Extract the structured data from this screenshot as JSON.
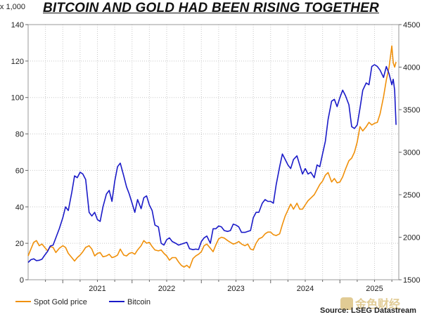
{
  "chart_data": {
    "type": "line",
    "title": "BITCOIN AND GOLD HAD BEEN RISING TOGETHER",
    "left_axis": {
      "unit_label": "x 1,000",
      "range": [
        0,
        140
      ],
      "ticks": [
        "0",
        "20",
        "40",
        "60",
        "80",
        "100",
        "120",
        "140"
      ]
    },
    "right_axis": {
      "range": [
        1500,
        4500
      ],
      "ticks": [
        "1500",
        "2000",
        "2500",
        "3000",
        "3500",
        "4000",
        "4500"
      ]
    },
    "x_axis": {
      "range": [
        2020.5,
        2025.85
      ],
      "ticks": [
        "2021",
        "2022",
        "2023",
        "2024",
        "2025"
      ]
    },
    "grid": true,
    "legend_position": "bottom-left",
    "series": [
      {
        "name": "Spot Gold price",
        "axis": "right",
        "color": "#f0900a",
        "points": [
          [
            2020.5,
            1780
          ],
          [
            2020.54,
            1860
          ],
          [
            2020.58,
            1940
          ],
          [
            2020.62,
            1960
          ],
          [
            2020.66,
            1900
          ],
          [
            2020.7,
            1920
          ],
          [
            2020.74,
            1880
          ],
          [
            2020.78,
            1840
          ],
          [
            2020.82,
            1890
          ],
          [
            2020.86,
            1880
          ],
          [
            2020.9,
            1820
          ],
          [
            2020.95,
            1870
          ],
          [
            2021.0,
            1900
          ],
          [
            2021.04,
            1880
          ],
          [
            2021.08,
            1810
          ],
          [
            2021.13,
            1760
          ],
          [
            2021.17,
            1720
          ],
          [
            2021.21,
            1760
          ],
          [
            2021.25,
            1790
          ],
          [
            2021.29,
            1830
          ],
          [
            2021.33,
            1880
          ],
          [
            2021.38,
            1900
          ],
          [
            2021.42,
            1860
          ],
          [
            2021.46,
            1780
          ],
          [
            2021.5,
            1810
          ],
          [
            2021.54,
            1820
          ],
          [
            2021.58,
            1770
          ],
          [
            2021.63,
            1780
          ],
          [
            2021.67,
            1800
          ],
          [
            2021.71,
            1760
          ],
          [
            2021.75,
            1770
          ],
          [
            2021.79,
            1790
          ],
          [
            2021.83,
            1860
          ],
          [
            2021.88,
            1790
          ],
          [
            2021.92,
            1780
          ],
          [
            2021.96,
            1810
          ],
          [
            2022.0,
            1820
          ],
          [
            2022.04,
            1800
          ],
          [
            2022.08,
            1850
          ],
          [
            2022.13,
            1900
          ],
          [
            2022.17,
            1960
          ],
          [
            2022.21,
            1930
          ],
          [
            2022.25,
            1940
          ],
          [
            2022.29,
            1890
          ],
          [
            2022.33,
            1850
          ],
          [
            2022.38,
            1840
          ],
          [
            2022.42,
            1850
          ],
          [
            2022.46,
            1810
          ],
          [
            2022.5,
            1780
          ],
          [
            2022.54,
            1730
          ],
          [
            2022.58,
            1760
          ],
          [
            2022.63,
            1760
          ],
          [
            2022.67,
            1710
          ],
          [
            2022.71,
            1670
          ],
          [
            2022.75,
            1650
          ],
          [
            2022.79,
            1670
          ],
          [
            2022.83,
            1640
          ],
          [
            2022.88,
            1750
          ],
          [
            2022.92,
            1780
          ],
          [
            2022.96,
            1800
          ],
          [
            2023.0,
            1830
          ],
          [
            2023.04,
            1900
          ],
          [
            2023.08,
            1920
          ],
          [
            2023.13,
            1870
          ],
          [
            2023.17,
            1830
          ],
          [
            2023.21,
            1910
          ],
          [
            2023.25,
            1980
          ],
          [
            2023.29,
            2000
          ],
          [
            2023.33,
            1990
          ],
          [
            2023.38,
            1960
          ],
          [
            2023.42,
            1940
          ],
          [
            2023.46,
            1920
          ],
          [
            2023.5,
            1930
          ],
          [
            2023.54,
            1950
          ],
          [
            2023.58,
            1920
          ],
          [
            2023.63,
            1900
          ],
          [
            2023.67,
            1920
          ],
          [
            2023.71,
            1860
          ],
          [
            2023.75,
            1850
          ],
          [
            2023.79,
            1930
          ],
          [
            2023.83,
            1980
          ],
          [
            2023.88,
            2000
          ],
          [
            2023.92,
            2040
          ],
          [
            2023.96,
            2060
          ],
          [
            2024.0,
            2060
          ],
          [
            2024.04,
            2030
          ],
          [
            2024.08,
            2020
          ],
          [
            2024.13,
            2040
          ],
          [
            2024.17,
            2150
          ],
          [
            2024.21,
            2250
          ],
          [
            2024.25,
            2320
          ],
          [
            2024.29,
            2390
          ],
          [
            2024.33,
            2330
          ],
          [
            2024.38,
            2400
          ],
          [
            2024.42,
            2330
          ],
          [
            2024.46,
            2330
          ],
          [
            2024.5,
            2380
          ],
          [
            2024.54,
            2430
          ],
          [
            2024.58,
            2460
          ],
          [
            2024.63,
            2500
          ],
          [
            2024.67,
            2560
          ],
          [
            2024.71,
            2620
          ],
          [
            2024.75,
            2660
          ],
          [
            2024.79,
            2730
          ],
          [
            2024.83,
            2760
          ],
          [
            2024.88,
            2650
          ],
          [
            2024.92,
            2690
          ],
          [
            2024.96,
            2640
          ],
          [
            2025.0,
            2650
          ],
          [
            2025.04,
            2710
          ],
          [
            2025.08,
            2800
          ],
          [
            2025.13,
            2900
          ],
          [
            2025.17,
            2930
          ],
          [
            2025.21,
            3000
          ],
          [
            2025.25,
            3120
          ],
          [
            2025.29,
            3300
          ],
          [
            2025.33,
            3250
          ],
          [
            2025.38,
            3300
          ],
          [
            2025.42,
            3350
          ],
          [
            2025.46,
            3320
          ],
          [
            2025.5,
            3340
          ],
          [
            2025.54,
            3350
          ],
          [
            2025.58,
            3450
          ],
          [
            2025.63,
            3650
          ],
          [
            2025.67,
            3850
          ],
          [
            2025.71,
            4000
          ],
          [
            2025.75,
            4250
          ],
          [
            2025.77,
            4050
          ],
          [
            2025.79,
            4000
          ],
          [
            2025.81,
            4060
          ]
        ]
      },
      {
        "name": "Bitcoin",
        "axis": "left",
        "color": "#1a1ac8",
        "points": [
          [
            2020.5,
            9.5
          ],
          [
            2020.54,
            11
          ],
          [
            2020.58,
            11.5
          ],
          [
            2020.62,
            10.5
          ],
          [
            2020.66,
            10.7
          ],
          [
            2020.7,
            11.3
          ],
          [
            2020.74,
            13.5
          ],
          [
            2020.78,
            15.5
          ],
          [
            2020.82,
            18.5
          ],
          [
            2020.86,
            19
          ],
          [
            2020.9,
            23
          ],
          [
            2020.95,
            28
          ],
          [
            2021.0,
            34
          ],
          [
            2021.04,
            40
          ],
          [
            2021.08,
            38
          ],
          [
            2021.13,
            48
          ],
          [
            2021.17,
            57
          ],
          [
            2021.21,
            56
          ],
          [
            2021.25,
            59
          ],
          [
            2021.29,
            58
          ],
          [
            2021.33,
            55
          ],
          [
            2021.38,
            37
          ],
          [
            2021.42,
            35
          ],
          [
            2021.46,
            37
          ],
          [
            2021.5,
            33
          ],
          [
            2021.54,
            32
          ],
          [
            2021.58,
            40
          ],
          [
            2021.63,
            47
          ],
          [
            2021.67,
            49
          ],
          [
            2021.71,
            43
          ],
          [
            2021.75,
            54
          ],
          [
            2021.79,
            62
          ],
          [
            2021.83,
            64
          ],
          [
            2021.88,
            57
          ],
          [
            2021.92,
            51
          ],
          [
            2021.96,
            47
          ],
          [
            2022.0,
            42
          ],
          [
            2022.04,
            37
          ],
          [
            2022.08,
            44
          ],
          [
            2022.13,
            39
          ],
          [
            2022.17,
            45
          ],
          [
            2022.21,
            46
          ],
          [
            2022.25,
            41
          ],
          [
            2022.29,
            38
          ],
          [
            2022.33,
            30
          ],
          [
            2022.38,
            29
          ],
          [
            2022.42,
            20
          ],
          [
            2022.46,
            19
          ],
          [
            2022.5,
            22
          ],
          [
            2022.54,
            23
          ],
          [
            2022.58,
            21
          ],
          [
            2022.63,
            20
          ],
          [
            2022.67,
            19
          ],
          [
            2022.71,
            19.5
          ],
          [
            2022.75,
            20
          ],
          [
            2022.79,
            20.5
          ],
          [
            2022.83,
            17
          ],
          [
            2022.88,
            16.5
          ],
          [
            2022.92,
            16.8
          ],
          [
            2022.96,
            16.6
          ],
          [
            2023.0,
            21
          ],
          [
            2023.04,
            23
          ],
          [
            2023.08,
            24
          ],
          [
            2023.13,
            20
          ],
          [
            2023.17,
            28
          ],
          [
            2023.21,
            28
          ],
          [
            2023.25,
            29.5
          ],
          [
            2023.29,
            29
          ],
          [
            2023.33,
            27
          ],
          [
            2023.38,
            26.5
          ],
          [
            2023.42,
            27
          ],
          [
            2023.46,
            30.5
          ],
          [
            2023.5,
            30
          ],
          [
            2023.54,
            29
          ],
          [
            2023.58,
            26
          ],
          [
            2023.63,
            26
          ],
          [
            2023.67,
            26.5
          ],
          [
            2023.71,
            27
          ],
          [
            2023.75,
            34
          ],
          [
            2023.79,
            37
          ],
          [
            2023.83,
            37
          ],
          [
            2023.88,
            42
          ],
          [
            2023.92,
            44
          ],
          [
            2023.96,
            43
          ],
          [
            2024.0,
            43
          ],
          [
            2024.04,
            42
          ],
          [
            2024.08,
            52
          ],
          [
            2024.13,
            62
          ],
          [
            2024.17,
            69
          ],
          [
            2024.21,
            66
          ],
          [
            2024.25,
            63
          ],
          [
            2024.29,
            61
          ],
          [
            2024.33,
            66
          ],
          [
            2024.38,
            68
          ],
          [
            2024.42,
            63
          ],
          [
            2024.46,
            58
          ],
          [
            2024.5,
            61
          ],
          [
            2024.54,
            58
          ],
          [
            2024.58,
            59
          ],
          [
            2024.63,
            56
          ],
          [
            2024.67,
            63
          ],
          [
            2024.71,
            62
          ],
          [
            2024.75,
            69
          ],
          [
            2024.79,
            76
          ],
          [
            2024.83,
            88
          ],
          [
            2024.88,
            98
          ],
          [
            2024.92,
            99
          ],
          [
            2024.96,
            95
          ],
          [
            2025.0,
            100
          ],
          [
            2025.04,
            104
          ],
          [
            2025.08,
            101
          ],
          [
            2025.13,
            96
          ],
          [
            2025.17,
            84
          ],
          [
            2025.21,
            83
          ],
          [
            2025.25,
            85
          ],
          [
            2025.29,
            94
          ],
          [
            2025.33,
            104
          ],
          [
            2025.38,
            108
          ],
          [
            2025.42,
            107
          ],
          [
            2025.46,
            117
          ],
          [
            2025.5,
            118
          ],
          [
            2025.54,
            117
          ],
          [
            2025.58,
            115
          ],
          [
            2025.63,
            111
          ],
          [
            2025.67,
            117
          ],
          [
            2025.71,
            113
          ],
          [
            2025.75,
            107
          ],
          [
            2025.77,
            110
          ],
          [
            2025.79,
            104
          ],
          [
            2025.81,
            85
          ]
        ]
      }
    ]
  },
  "footer": {
    "source": "Source: LSEG Datastream"
  },
  "watermark": {
    "text": "金色财经"
  }
}
